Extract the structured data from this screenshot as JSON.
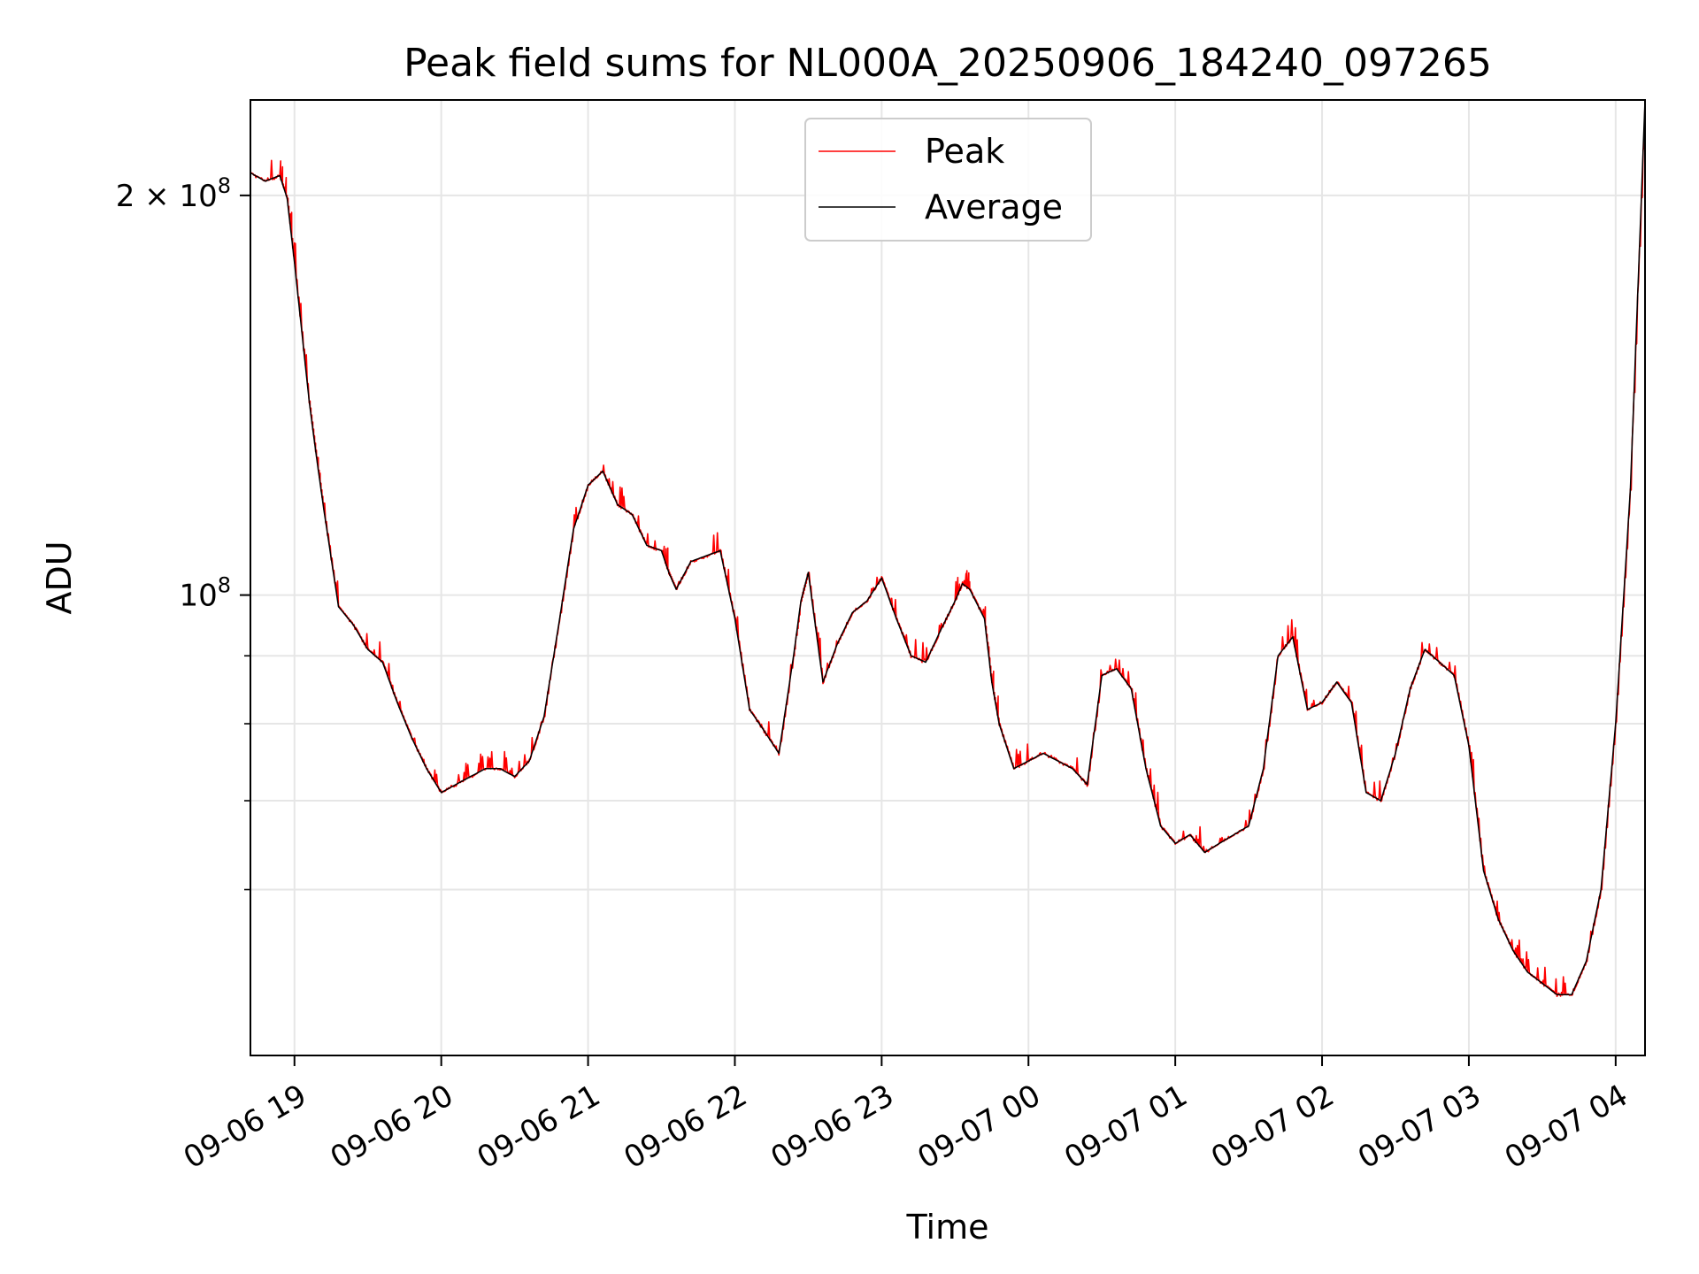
{
  "chart_data": {
    "type": "line",
    "title": "Peak field sums for NL000A_20250906_184240_097265",
    "xlabel": "Time",
    "ylabel": "ADU",
    "yscale": "log",
    "grid": true,
    "legend_placement": "upper center",
    "xlim": [
      "2025-09-06 18:42",
      "2025-09-07 04:12"
    ],
    "ylim": [
      45000000,
      236000000
    ],
    "x_ticks": [
      {
        "value": "2025-09-06 19:00",
        "label": "09-06 19"
      },
      {
        "value": "2025-09-06 20:00",
        "label": "09-06 20"
      },
      {
        "value": "2025-09-06 21:00",
        "label": "09-06 21"
      },
      {
        "value": "2025-09-06 22:00",
        "label": "09-06 22"
      },
      {
        "value": "2025-09-06 23:00",
        "label": "09-06 23"
      },
      {
        "value": "2025-09-07 00:00",
        "label": "09-07 00"
      },
      {
        "value": "2025-09-07 01:00",
        "label": "09-07 01"
      },
      {
        "value": "2025-09-07 02:00",
        "label": "09-07 02"
      },
      {
        "value": "2025-09-07 03:00",
        "label": "09-07 03"
      },
      {
        "value": "2025-09-07 04:00",
        "label": "09-07 04"
      }
    ],
    "y_ticks": [
      {
        "value": 100000000,
        "base": "10",
        "exp": "8",
        "mantissa": ""
      },
      {
        "value": 200000000,
        "base": "10",
        "exp": "8",
        "mantissa": "2 × "
      }
    ],
    "y_minor_ticks": [
      60000000,
      70000000,
      80000000,
      90000000
    ],
    "series": [
      {
        "name": "Peak",
        "color": "#ff0000",
        "spiky": true
      },
      {
        "name": "Average",
        "color": "#000000",
        "spiky": false
      }
    ],
    "x": [
      "2025-09-06 18:42",
      "2025-09-06 18:48",
      "2025-09-06 18:54",
      "2025-09-06 18:57",
      "2025-09-06 19:00",
      "2025-09-06 19:06",
      "2025-09-06 19:09",
      "2025-09-06 19:12",
      "2025-09-06 19:18",
      "2025-09-06 19:24",
      "2025-09-06 19:30",
      "2025-09-06 19:36",
      "2025-09-06 19:42",
      "2025-09-06 19:48",
      "2025-09-06 19:54",
      "2025-09-06 20:00",
      "2025-09-06 20:06",
      "2025-09-06 20:12",
      "2025-09-06 20:18",
      "2025-09-06 20:24",
      "2025-09-06 20:30",
      "2025-09-06 20:36",
      "2025-09-06 20:42",
      "2025-09-06 20:48",
      "2025-09-06 20:54",
      "2025-09-06 21:00",
      "2025-09-06 21:06",
      "2025-09-06 21:12",
      "2025-09-06 21:18",
      "2025-09-06 21:24",
      "2025-09-06 21:30",
      "2025-09-06 21:33",
      "2025-09-06 21:36",
      "2025-09-06 21:42",
      "2025-09-06 21:48",
      "2025-09-06 21:54",
      "2025-09-06 22:00",
      "2025-09-06 22:06",
      "2025-09-06 22:12",
      "2025-09-06 22:18",
      "2025-09-06 22:24",
      "2025-09-06 22:27",
      "2025-09-06 22:30",
      "2025-09-06 22:36",
      "2025-09-06 22:42",
      "2025-09-06 22:48",
      "2025-09-06 22:54",
      "2025-09-06 23:00",
      "2025-09-06 23:06",
      "2025-09-06 23:12",
      "2025-09-06 23:18",
      "2025-09-06 23:24",
      "2025-09-06 23:30",
      "2025-09-06 23:33",
      "2025-09-06 23:36",
      "2025-09-06 23:42",
      "2025-09-06 23:45",
      "2025-09-06 23:48",
      "2025-09-06 23:54",
      "2025-09-07 00:00",
      "2025-09-07 00:06",
      "2025-09-07 00:12",
      "2025-09-07 00:18",
      "2025-09-07 00:24",
      "2025-09-07 00:30",
      "2025-09-07 00:36",
      "2025-09-07 00:42",
      "2025-09-07 00:48",
      "2025-09-07 00:54",
      "2025-09-07 01:00",
      "2025-09-07 01:06",
      "2025-09-07 01:12",
      "2025-09-07 01:18",
      "2025-09-07 01:24",
      "2025-09-07 01:30",
      "2025-09-07 01:36",
      "2025-09-07 01:42",
      "2025-09-07 01:48",
      "2025-09-07 01:54",
      "2025-09-07 02:00",
      "2025-09-07 02:06",
      "2025-09-07 02:12",
      "2025-09-07 02:18",
      "2025-09-07 02:24",
      "2025-09-07 02:30",
      "2025-09-07 02:36",
      "2025-09-07 02:42",
      "2025-09-07 02:48",
      "2025-09-07 02:54",
      "2025-09-07 03:00",
      "2025-09-07 03:06",
      "2025-09-07 03:12",
      "2025-09-07 03:18",
      "2025-09-07 03:24",
      "2025-09-07 03:30",
      "2025-09-07 03:36",
      "2025-09-07 03:42",
      "2025-09-07 03:48",
      "2025-09-07 03:54",
      "2025-09-07 04:00",
      "2025-09-07 04:06",
      "2025-09-07 04:12"
    ],
    "values": [
      208000000,
      205000000,
      207000000,
      199000000,
      178000000,
      140000000,
      127000000,
      116000000,
      98000000,
      95000000,
      91000000,
      89000000,
      83000000,
      78000000,
      74000000,
      71000000,
      72000000,
      73000000,
      74000000,
      74000000,
      73000000,
      75000000,
      81000000,
      95000000,
      112000000,
      121000000,
      124000000,
      117000000,
      115000000,
      109000000,
      108000000,
      104000000,
      101000000,
      106000000,
      107000000,
      108000000,
      96000000,
      82000000,
      79000000,
      76000000,
      90000000,
      99000000,
      104000000,
      86000000,
      92000000,
      97000000,
      99000000,
      103000000,
      96000000,
      90000000,
      89000000,
      94000000,
      99000000,
      102000000,
      101000000,
      96000000,
      86000000,
      80000000,
      74000000,
      75000000,
      76000000,
      75000000,
      74000000,
      72000000,
      87000000,
      88000000,
      85000000,
      74000000,
      67000000,
      65000000,
      66000000,
      64000000,
      65000000,
      66000000,
      67000000,
      74000000,
      90000000,
      93000000,
      82000000,
      83000000,
      86000000,
      83000000,
      71000000,
      70000000,
      76000000,
      85000000,
      91000000,
      89000000,
      87000000,
      77000000,
      62000000,
      57000000,
      54000000,
      52000000,
      51000000,
      50000000,
      50000000,
      53000000,
      60000000,
      80000000,
      120000000,
      236000000
    ]
  }
}
